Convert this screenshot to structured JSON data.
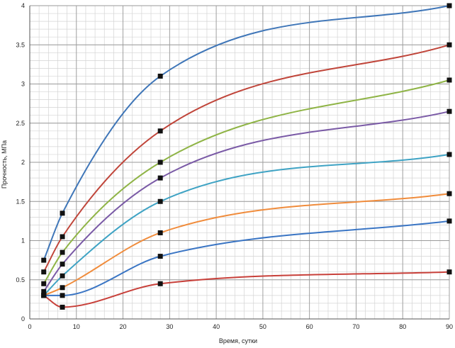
{
  "chart_data": {
    "type": "line",
    "title": "",
    "xlabel": "Время, сутки",
    "ylabel": "Прочность, МПа",
    "xlim": [
      0,
      90
    ],
    "ylim": [
      0,
      4
    ],
    "xticks": [
      0,
      10,
      20,
      30,
      40,
      50,
      60,
      70,
      80,
      90
    ],
    "yticks": [
      0,
      0.5,
      1,
      1.5,
      2,
      2.5,
      3,
      3.5,
      4
    ],
    "xtick_labels": [
      "0",
      "10",
      "20",
      "30",
      "40",
      "50",
      "60",
      "70",
      "80",
      "90"
    ],
    "ytick_labels": [
      "0",
      "0.5",
      "1",
      "1.5",
      "2",
      "2.5",
      "3",
      "3.5",
      "4"
    ],
    "grid": true,
    "legend": "none",
    "marker": "square",
    "x": [
      3,
      7,
      28,
      90
    ],
    "series": [
      {
        "values": [
          0.75,
          1.35,
          3.1,
          4.0
        ],
        "color": "#3f76b8"
      },
      {
        "values": [
          0.6,
          1.05,
          2.4,
          3.5
        ],
        "color": "#c0453a"
      },
      {
        "values": [
          0.45,
          0.85,
          2.0,
          3.05
        ],
        "color": "#8fb446"
      },
      {
        "values": [
          0.35,
          0.7,
          1.8,
          2.65
        ],
        "color": "#7a5aa6"
      },
      {
        "values": [
          0.3,
          0.55,
          1.5,
          2.1
        ],
        "color": "#3fa3c4"
      },
      {
        "values": [
          0.3,
          0.4,
          1.1,
          1.6
        ],
        "color": "#f08c3c"
      },
      {
        "values": [
          0.3,
          0.3,
          0.8,
          1.25
        ],
        "color": "#3a75c4"
      },
      {
        "values": [
          0.3,
          0.15,
          0.45,
          0.6
        ],
        "color": "#c8403a"
      }
    ]
  }
}
